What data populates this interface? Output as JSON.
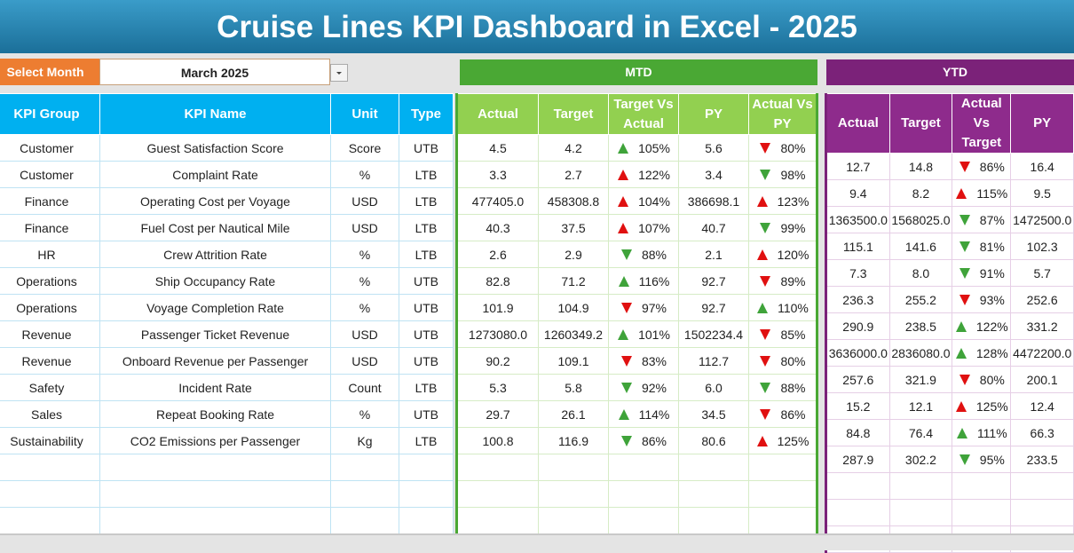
{
  "header": {
    "title": "Cruise Lines KPI Dashboard in Excel - 2025"
  },
  "month_selector": {
    "label": "Select Month",
    "value": "March 2025"
  },
  "sections": {
    "mtd": "MTD",
    "ytd": "YTD"
  },
  "table": {
    "columns": {
      "info": [
        "KPI Group",
        "KPI Name",
        "Unit",
        "Type"
      ],
      "mtd": [
        "Actual",
        "Target",
        "Target Vs Actual",
        "PY",
        "Actual Vs PY"
      ],
      "ytd": [
        "Actual",
        "Target",
        "Actual Vs Target",
        "PY"
      ]
    },
    "rows": [
      [
        "Customer",
        "Guest Satisfaction Score",
        "Score",
        "UTB",
        "4.5",
        "4.2",
        "105%",
        "5.6",
        "80%",
        "12.7",
        "14.8",
        "86%",
        "16.4"
      ],
      [
        "Customer",
        "Complaint Rate",
        "%",
        "LTB",
        "3.3",
        "2.7",
        "122%",
        "3.4",
        "98%",
        "9.4",
        "8.2",
        "115%",
        "9.5"
      ],
      [
        "Finance",
        "Operating Cost per Voyage",
        "USD",
        "LTB",
        "477405.0",
        "458308.8",
        "104%",
        "386698.1",
        "123%",
        "1363500.0",
        "1568025.0",
        "87%",
        "1472500.0"
      ],
      [
        "Finance",
        "Fuel Cost per Nautical Mile",
        "USD",
        "LTB",
        "40.3",
        "37.5",
        "107%",
        "40.7",
        "99%",
        "115.1",
        "141.6",
        "81%",
        "102.3"
      ],
      [
        "HR",
        "Crew Attrition Rate",
        "%",
        "LTB",
        "2.6",
        "2.9",
        "88%",
        "2.1",
        "120%",
        "7.3",
        "8.0",
        "91%",
        "5.7"
      ],
      [
        "Operations",
        "Ship Occupancy Rate",
        "%",
        "UTB",
        "82.8",
        "71.2",
        "116%",
        "92.7",
        "89%",
        "236.3",
        "255.2",
        "93%",
        "252.6"
      ],
      [
        "Operations",
        "Voyage Completion Rate",
        "%",
        "UTB",
        "101.9",
        "104.9",
        "97%",
        "92.7",
        "110%",
        "290.9",
        "238.5",
        "122%",
        "331.2"
      ],
      [
        "Revenue",
        "Passenger Ticket Revenue",
        "USD",
        "UTB",
        "1273080.0",
        "1260349.2",
        "101%",
        "1502234.4",
        "85%",
        "3636000.0",
        "2836080.0",
        "128%",
        "4472200.0"
      ],
      [
        "Revenue",
        "Onboard Revenue per Passenger",
        "USD",
        "UTB",
        "90.2",
        "109.1",
        "83%",
        "112.7",
        "80%",
        "257.6",
        "321.9",
        "80%",
        "200.1"
      ],
      [
        "Safety",
        "Incident Rate",
        "Count",
        "LTB",
        "5.3",
        "5.8",
        "92%",
        "6.0",
        "88%",
        "15.2",
        "12.1",
        "125%",
        "12.4"
      ],
      [
        "Sales",
        "Repeat Booking Rate",
        "%",
        "UTB",
        "29.7",
        "26.1",
        "114%",
        "34.5",
        "86%",
        "84.8",
        "76.4",
        "111%",
        "66.3"
      ],
      [
        "Sustainability",
        "CO2 Emissions per Passenger",
        "Kg",
        "LTB",
        "100.8",
        "116.9",
        "86%",
        "80.6",
        "125%",
        "287.9",
        "302.2",
        "95%",
        "233.5"
      ]
    ]
  }
}
